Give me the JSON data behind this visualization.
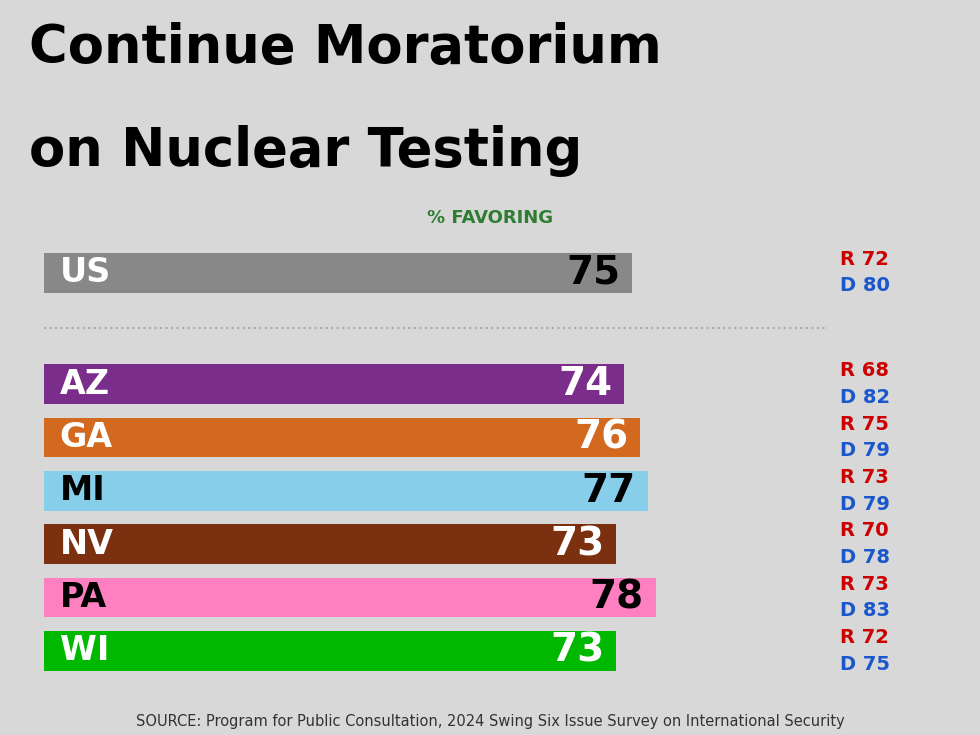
{
  "title_line1": "Continue Moratorium",
  "title_line2": "on Nuclear Testing",
  "subtitle": "% FAVORING",
  "subtitle_color": "#2e7d32",
  "source": "SOURCE: Program for Public Consultation, 2024 Swing Six Issue Survey on International Security",
  "background_color": "#d8d8d8",
  "plot_bg_color": "#ffffff",
  "bars": [
    {
      "label": "US",
      "value": 75,
      "color": "#888888",
      "r": 72,
      "d": 80,
      "label_color": "#ffffff",
      "value_color": "#000000"
    },
    {
      "label": "AZ",
      "value": 74,
      "color": "#7B2D8B",
      "r": 68,
      "d": 82,
      "label_color": "#ffffff",
      "value_color": "#ffffff"
    },
    {
      "label": "GA",
      "value": 76,
      "color": "#D2691E",
      "r": 75,
      "d": 79,
      "label_color": "#ffffff",
      "value_color": "#ffffff"
    },
    {
      "label": "MI",
      "value": 77,
      "color": "#87CEEB",
      "r": 73,
      "d": 79,
      "label_color": "#000000",
      "value_color": "#000000"
    },
    {
      "label": "NV",
      "value": 73,
      "color": "#7B3010",
      "r": 70,
      "d": 78,
      "label_color": "#ffffff",
      "value_color": "#ffffff"
    },
    {
      "label": "PA",
      "value": 78,
      "color": "#FF80C0",
      "r": 73,
      "d": 83,
      "label_color": "#000000",
      "value_color": "#000000"
    },
    {
      "label": "WI",
      "value": 73,
      "color": "#00B800",
      "r": 72,
      "d": 75,
      "label_color": "#ffffff",
      "value_color": "#ffffff"
    }
  ],
  "r_color": "#cc0000",
  "d_color": "#1a56cc",
  "max_bar_val": 100,
  "title_fontsize": 38,
  "label_fontsize": 24,
  "value_fontsize": 28,
  "rd_fontsize": 14,
  "source_fontsize": 10.5
}
